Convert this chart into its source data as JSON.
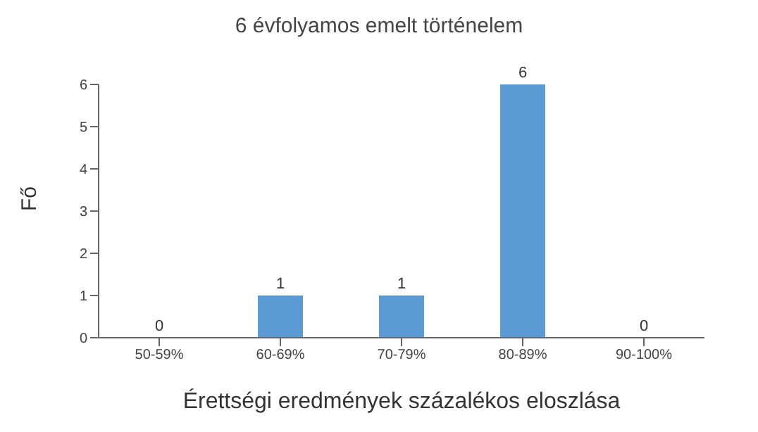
{
  "chart_data": {
    "type": "bar",
    "title": "6 évfolyamos emelt történelem",
    "xlabel": "Érettségi eredmények százalékos eloszlása",
    "ylabel": "Fő",
    "categories": [
      "50-59%",
      "60-69%",
      "70-79%",
      "80-89%",
      "90-100%"
    ],
    "values": [
      0,
      1,
      1,
      6,
      0
    ],
    "color": "#5b9bd5",
    "ylim": [
      0,
      6
    ],
    "yticks": [
      0,
      1,
      2,
      3,
      4,
      5,
      6
    ],
    "data_labels": true,
    "grid": false
  }
}
